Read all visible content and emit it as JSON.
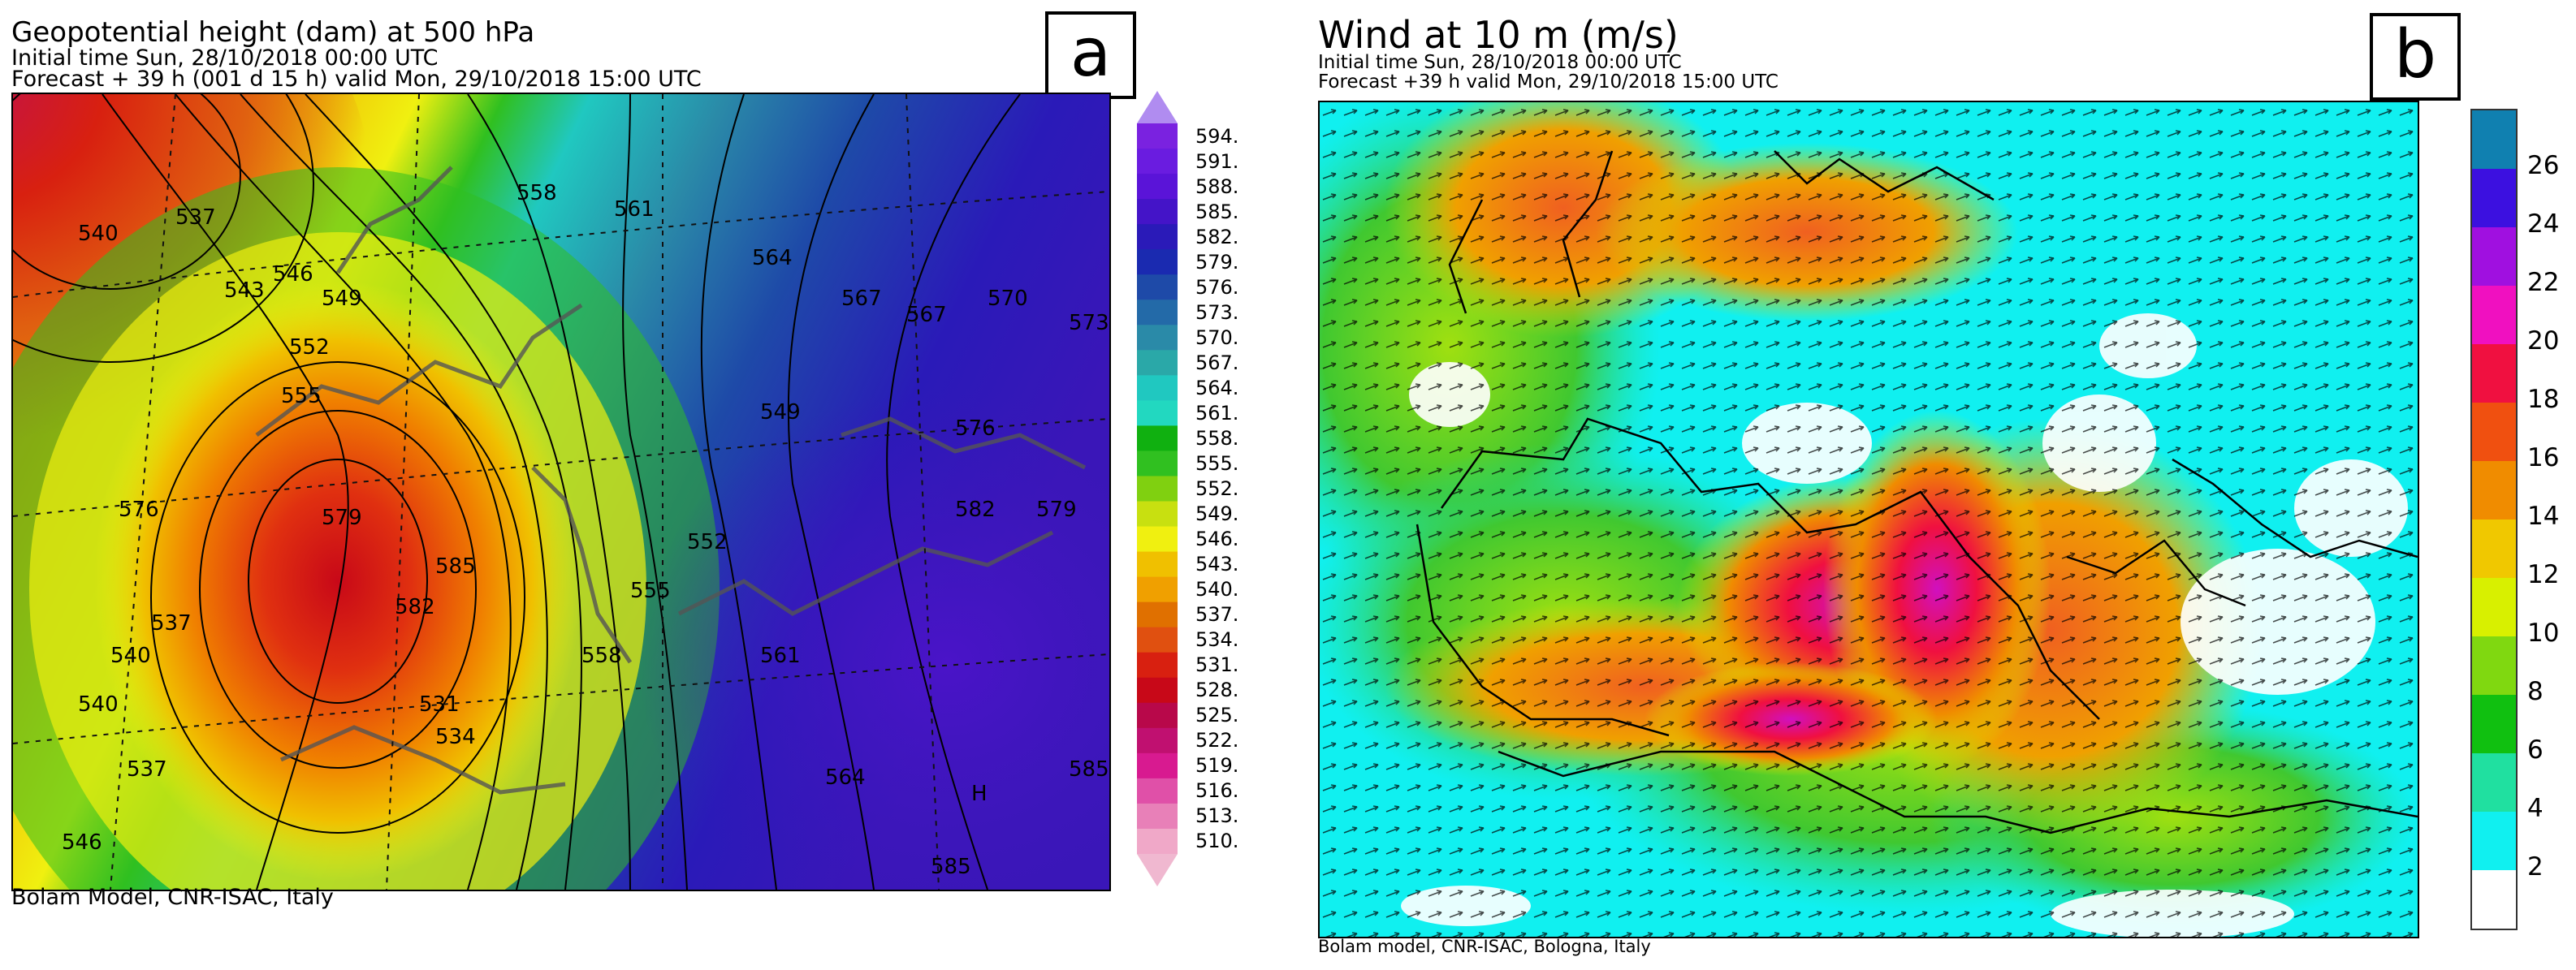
{
  "panel_a": {
    "title": "Geopotential height (dam) at 500 hPa",
    "initial_time": "Initial time  Sun, 28/10/2018  00:00 UTC",
    "forecast": "Forecast  +  39 h  (001 d 15 h)  valid Mon, 29/10/2018 15:00 UTC",
    "letter": "a",
    "credit": "Bolam Model, CNR-ISAC, Italy",
    "contour_labels": [
      "537",
      "540",
      "543",
      "546",
      "549",
      "552",
      "555",
      "558",
      "561",
      "564",
      "567",
      "570",
      "573",
      "576",
      "579",
      "582",
      "585",
      "531",
      "534",
      "537",
      "540",
      "540",
      "537",
      "546",
      "549",
      "552",
      "555",
      "558",
      "561",
      "564",
      "567",
      "576",
      "579",
      "582",
      "585",
      "H",
      "585"
    ],
    "colorbar": {
      "labels": [
        "594.",
        "591.",
        "588.",
        "585.",
        "582.",
        "579.",
        "576.",
        "573.",
        "570.",
        "567.",
        "564.",
        "561.",
        "558.",
        "555.",
        "552.",
        "549.",
        "546.",
        "543.",
        "540.",
        "537.",
        "534.",
        "531.",
        "528.",
        "525.",
        "522.",
        "519.",
        "516.",
        "513.",
        "510."
      ],
      "colors": [
        "#7a22e0",
        "#6a1ce0",
        "#5a14d8",
        "#4414c8",
        "#2a1ab8",
        "#1a2ab0",
        "#1e4aa8",
        "#236aa8",
        "#2a8aa8",
        "#2aa8a8",
        "#20c8c0",
        "#22d8c0",
        "#10b010",
        "#30c020",
        "#80d010",
        "#c8e010",
        "#f0f010",
        "#f0c000",
        "#f0a000",
        "#e07000",
        "#e05010",
        "#d82010",
        "#c80818",
        "#b8084a",
        "#c01070",
        "#d81a90",
        "#e050a8",
        "#e880b8",
        "#f0a8c8"
      ],
      "top_arrow_color": "#b08cf0",
      "bottom_arrow_color": "#f0b8d0"
    }
  },
  "panel_b": {
    "title": "Wind at 10 m (m/s)",
    "initial_time": "Initial time  Sun, 28/10/2018 00:00 UTC",
    "forecast": "Forecast +39 h valid  Mon, 29/10/2018 15:00 UTC",
    "letter": "b",
    "credit": "Bolam model, CNR-ISAC, Bologna, Italy",
    "colorbar": {
      "labels": [
        "26",
        "24",
        "22",
        "20",
        "18",
        "16",
        "14",
        "12",
        "10",
        "8",
        "6",
        "4",
        "2"
      ],
      "colors": [
        "#1080b0",
        "#3c10e0",
        "#a010e0",
        "#f010c0",
        "#f01040",
        "#f05010",
        "#f08c00",
        "#f0c800",
        "#d8f000",
        "#80d810",
        "#10c010",
        "#20e0a0",
        "#10f0f0",
        "#ffffff"
      ]
    }
  },
  "colors": {
    "high_geopotential": "#3a16b8",
    "low_geopotential": "#d02010",
    "strong_wind": "#e01060",
    "calm_wind": "#10f0f0"
  }
}
